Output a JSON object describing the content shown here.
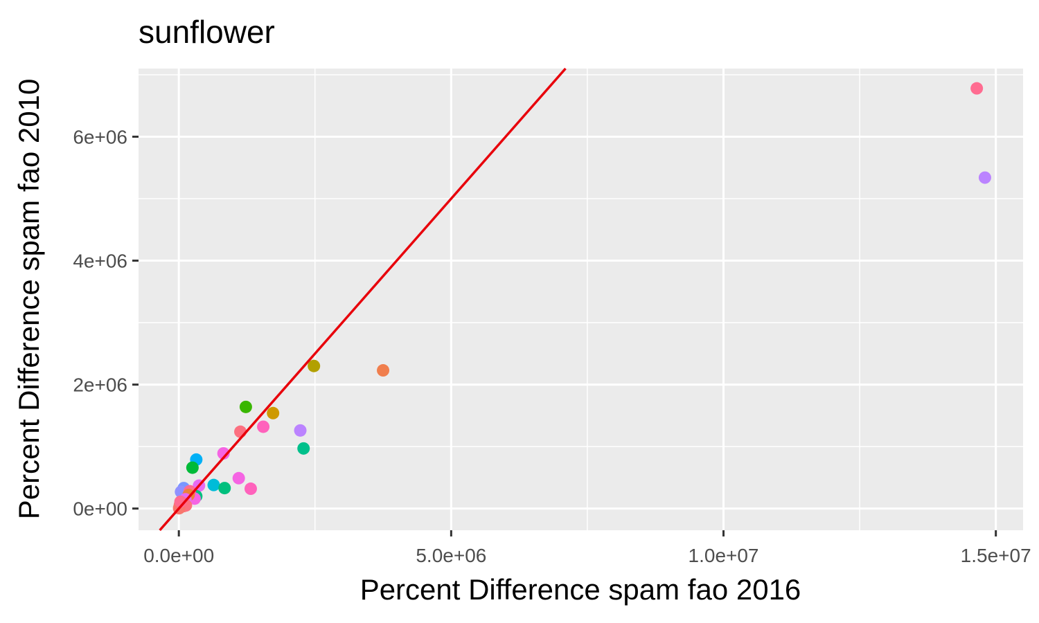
{
  "chart_data": {
    "type": "scatter",
    "title": "sunflower",
    "xlabel": "Percent Difference spam fao 2016",
    "ylabel": "Percent Difference spam fao 2010",
    "xlim": [
      -740000,
      15500000
    ],
    "ylim": [
      -350000,
      7100000
    ],
    "x_ticks": [
      {
        "value": 0,
        "label": "0.0e+00"
      },
      {
        "value": 5000000,
        "label": "5.0e+06"
      },
      {
        "value": 10000000,
        "label": "1.0e+07"
      },
      {
        "value": 15000000,
        "label": "1.5e+07"
      }
    ],
    "x_minor_gridlines": [
      2500000,
      7500000,
      12500000
    ],
    "y_ticks": [
      {
        "value": 0,
        "label": "0e+00"
      },
      {
        "value": 2000000,
        "label": "2e+06"
      },
      {
        "value": 4000000,
        "label": "4e+06"
      },
      {
        "value": 6000000,
        "label": "6e+06"
      }
    ],
    "y_minor_gridlines": [
      1000000,
      3000000,
      5000000,
      7000000
    ],
    "grid": true,
    "legend": "none",
    "panel_background": "#ebebeb",
    "gridline_color": "#ffffff",
    "reference_line": {
      "slope": 1,
      "intercept": 0,
      "color": "#e8000b"
    },
    "points": [
      {
        "x": 14650000,
        "y": 6780000,
        "color": "#ff6c91"
      },
      {
        "x": 14800000,
        "y": 5340000,
        "color": "#bb83ff"
      },
      {
        "x": 3750000,
        "y": 2230000,
        "color": "#f07e4d"
      },
      {
        "x": 2480000,
        "y": 2300000,
        "color": "#b2a000"
      },
      {
        "x": 1730000,
        "y": 1540000,
        "color": "#ce9a00"
      },
      {
        "x": 1230000,
        "y": 1640000,
        "color": "#39b600"
      },
      {
        "x": 1550000,
        "y": 1320000,
        "color": "#ff62bc"
      },
      {
        "x": 1130000,
        "y": 1240000,
        "color": "#fc7080"
      },
      {
        "x": 2230000,
        "y": 1260000,
        "color": "#bb83ff"
      },
      {
        "x": 2290000,
        "y": 970000,
        "color": "#00c08b"
      },
      {
        "x": 820000,
        "y": 890000,
        "color": "#f564e3"
      },
      {
        "x": 320000,
        "y": 790000,
        "color": "#00b0f6"
      },
      {
        "x": 250000,
        "y": 660000,
        "color": "#00ba38"
      },
      {
        "x": 1100000,
        "y": 490000,
        "color": "#f564e3"
      },
      {
        "x": 1320000,
        "y": 320000,
        "color": "#ff62bc"
      },
      {
        "x": 640000,
        "y": 380000,
        "color": "#00bcd8"
      },
      {
        "x": 840000,
        "y": 330000,
        "color": "#00bf7d"
      },
      {
        "x": 370000,
        "y": 370000,
        "color": "#e76bf3"
      },
      {
        "x": 90000,
        "y": 330000,
        "color": "#7997ff"
      },
      {
        "x": 40000,
        "y": 270000,
        "color": "#8f91ff"
      },
      {
        "x": 320000,
        "y": 200000,
        "color": "#00bf7d"
      },
      {
        "x": 290000,
        "y": 160000,
        "color": "#f564e3"
      },
      {
        "x": 200000,
        "y": 280000,
        "color": "#ff6c91"
      },
      {
        "x": 180000,
        "y": 220000,
        "color": "#ec8239"
      },
      {
        "x": 120000,
        "y": 150000,
        "color": "#e76bf3"
      },
      {
        "x": 60000,
        "y": 90000,
        "color": "#f8766d"
      },
      {
        "x": 20000,
        "y": 60000,
        "color": "#f8766d"
      },
      {
        "x": 10000,
        "y": 20000,
        "color": "#fc717f"
      },
      {
        "x": 90000,
        "y": 40000,
        "color": "#f8766d"
      },
      {
        "x": 130000,
        "y": 50000,
        "color": "#fc717f"
      },
      {
        "x": 5000,
        "y": 5000,
        "color": "#f8766d"
      },
      {
        "x": 30000,
        "y": 110000,
        "color": "#ff6c91"
      }
    ]
  }
}
